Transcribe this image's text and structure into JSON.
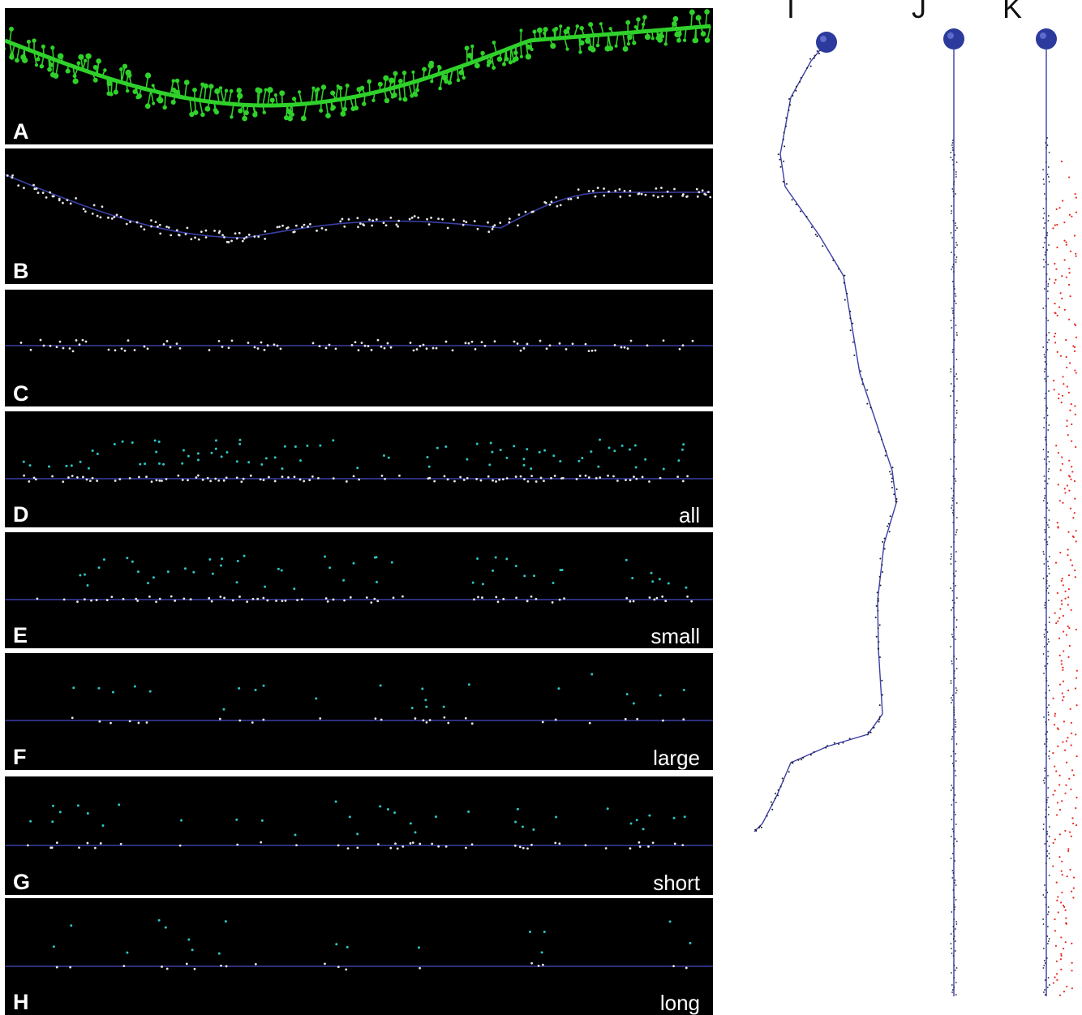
{
  "panels": [
    {
      "label": "A",
      "category": ""
    },
    {
      "label": "B",
      "category": ""
    },
    {
      "label": "C",
      "category": ""
    },
    {
      "label": "D",
      "category": "all"
    },
    {
      "label": "E",
      "category": "small"
    },
    {
      "label": "F",
      "category": "large"
    },
    {
      "label": "G",
      "category": "short"
    },
    {
      "label": "H",
      "category": "long"
    }
  ],
  "right_panels": [
    {
      "label": "I"
    },
    {
      "label": "J"
    },
    {
      "label": "K"
    }
  ],
  "colors": {
    "background_panel": "#000000",
    "dendrite_fluorescence": "#2fd12a",
    "dendrite_trace": "#3a3fa6",
    "spine_white": "#e6e6e6",
    "spine_cyan": "#2cc7c4",
    "spine_dark": "#1a1a2e",
    "random_red": "#e8271e",
    "soma": "#2b3a9c"
  },
  "icons": {
    "soma": "soma-sphere-icon"
  }
}
